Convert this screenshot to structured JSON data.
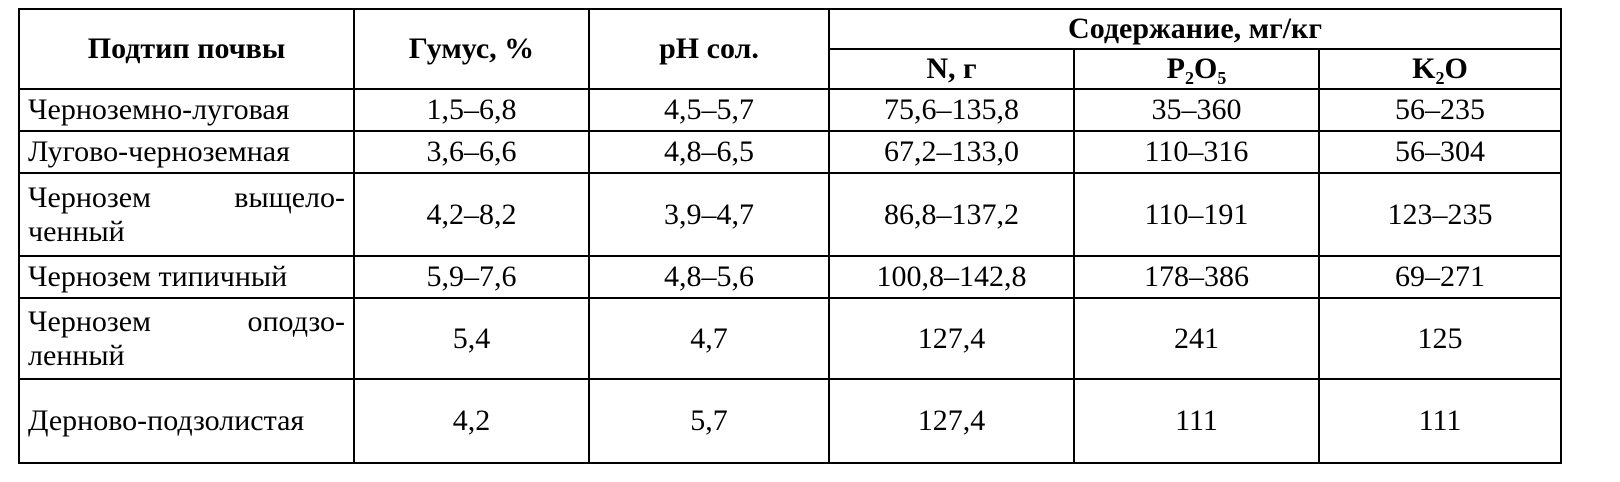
{
  "table": {
    "header": {
      "subtype": "Подтип почвы",
      "humus": "Гумус, %",
      "ph": "pH сол.",
      "content": "Содержание, мг/кг",
      "n": "N, г",
      "p2o5": "P₂O₅",
      "k2o": "K₂O"
    },
    "rows": [
      [
        "Черноземно-луговая",
        "1,5–6,8",
        "4,5–5,7",
        "75,6–135,8",
        "35–360",
        "56–235"
      ],
      [
        "Лугово-черноземная",
        "3,6–6,6",
        "4,8–6,5",
        "67,2–133,0",
        "110–316",
        "56–304"
      ],
      [
        "Чернозем выщело-ченный",
        "4,2–8,2",
        "3,9–4,7",
        "86,8–137,2",
        "110–191",
        "123–235"
      ],
      [
        "Чернозем типичный",
        "5,9–7,6",
        "4,8–5,6",
        "100,8–142,8",
        "178–386",
        "69–271"
      ],
      [
        "Чернозем оподзо-ленный",
        "5,4",
        "4,7",
        "127,4",
        "241",
        "125"
      ],
      [
        "Дерново-подзолистая",
        "4,2",
        "5,7",
        "127,4",
        "111",
        "111"
      ]
    ]
  }
}
